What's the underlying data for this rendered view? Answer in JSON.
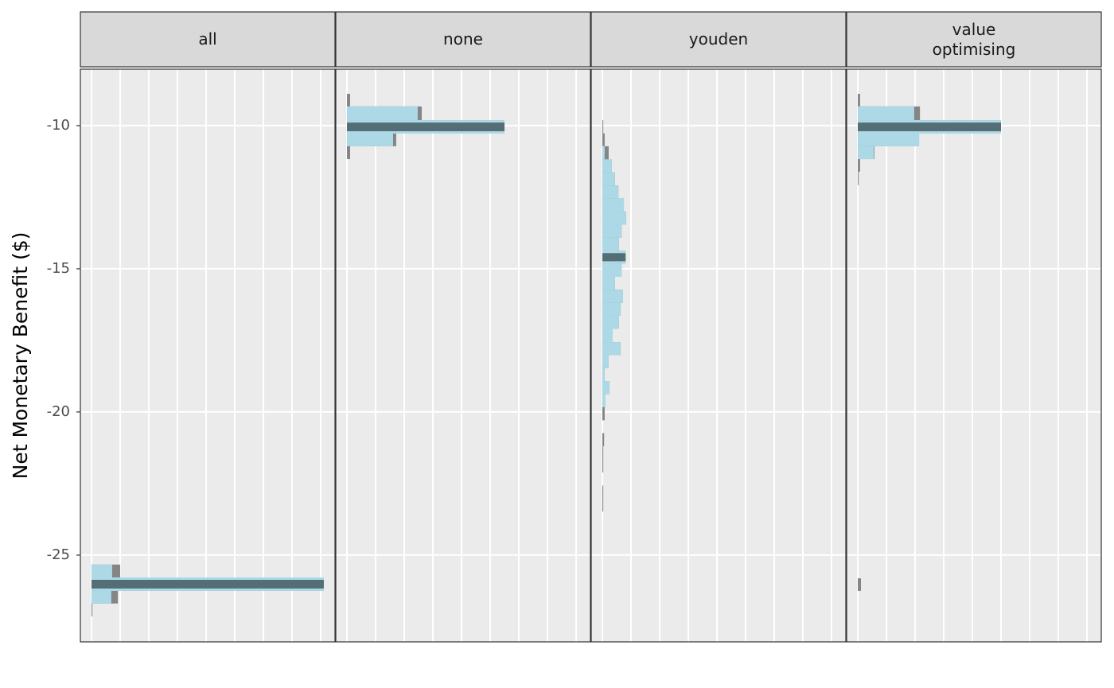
{
  "chart_data": {
    "type": "histogram",
    "ylabel": "Net Monetary Benefit ($)",
    "ylim": [
      -28.03,
      -8.03
    ],
    "yticks": [
      -10,
      -15,
      -20,
      -25
    ],
    "xlim": [
      -0.39,
      8.5
    ],
    "xticks": [
      0,
      1,
      2,
      3,
      4,
      5,
      6,
      7,
      8
    ],
    "grid": true,
    "fill_color": "#add8e6",
    "outline_color": "#858585",
    "highlight_color": "#546e76",
    "panel_color": "#ebebeb",
    "strip_color": "#d9d9d9",
    "facets": [
      {
        "label": "all",
        "bins": [
          -25.33,
          -25.78,
          -26.25,
          -26.69,
          -27.14
        ],
        "counts": [
          0.72,
          8.11,
          0.69,
          0
        ],
        "counts_outline": [
          1.0,
          8.11,
          0.92,
          0.03
        ],
        "highlight": 1
      },
      {
        "label": "none",
        "bins": [
          -8.89,
          -9.33,
          -9.81,
          -10.28,
          -10.72,
          -11.17
        ],
        "counts": [
          0,
          2.47,
          5.5,
          1.61,
          0
        ],
        "counts_outline": [
          0.11,
          2.61,
          5.5,
          1.72,
          0.11
        ],
        "highlight": 2
      },
      {
        "label": "youden",
        "bins": [
          -9.81,
          -10.27,
          -10.72,
          -11.18,
          -11.63,
          -12.09,
          -12.54,
          -13.0,
          -13.46,
          -13.91,
          -14.37,
          -14.82,
          -15.28,
          -15.73,
          -16.19,
          -16.64,
          -17.1,
          -17.56,
          -18.01,
          -18.47,
          -18.92,
          -19.38,
          -19.83,
          -20.29,
          -20.74,
          -21.2,
          -21.66,
          -22.11,
          -22.57,
          -23.02,
          -23.48
        ],
        "counts": [
          0,
          0,
          0.08,
          0.33,
          0.44,
          0.56,
          0.75,
          0.83,
          0.67,
          0.58,
          0.81,
          0.67,
          0.44,
          0.72,
          0.64,
          0.58,
          0.36,
          0.64,
          0.22,
          0.08,
          0.25,
          0.11,
          0,
          0,
          0,
          0,
          0,
          0,
          0,
          0
        ],
        "counts_outline": [
          0.03,
          0.08,
          0.22,
          0.33,
          0.44,
          0.56,
          0.75,
          0.83,
          0.67,
          0.58,
          0.81,
          0.67,
          0.44,
          0.72,
          0.64,
          0.58,
          0.36,
          0.64,
          0.22,
          0.08,
          0.25,
          0.11,
          0.08,
          0,
          0.06,
          0.03,
          0.03,
          0,
          0.03,
          0.03
        ],
        "highlight": 10
      },
      {
        "label": "value\noptimising",
        "bins": [
          -8.89,
          -9.33,
          -9.81,
          -10.28,
          -10.72,
          -11.17,
          -11.61,
          -12.08,
          -25.81,
          -26.25
        ],
        "counts": [
          0,
          1.97,
          5.0,
          2.14,
          0.56,
          0,
          0,
          0,
          0
        ],
        "counts_outline": [
          0.08,
          2.17,
          5.0,
          2.14,
          0.58,
          0.08,
          0.03,
          0,
          0.11
        ],
        "highlight": 2
      }
    ]
  }
}
